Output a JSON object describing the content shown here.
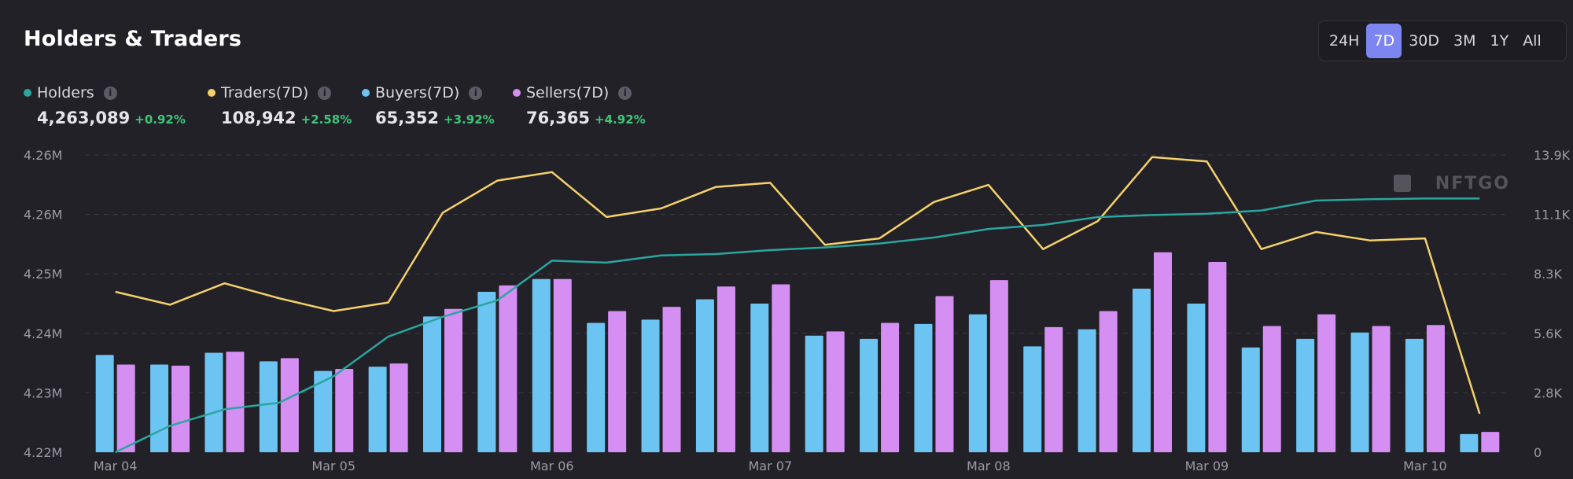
{
  "title": "Holders & Traders",
  "ranges": [
    {
      "label": "24H",
      "active": false
    },
    {
      "label": "7D",
      "active": true
    },
    {
      "label": "30D",
      "active": false
    },
    {
      "label": "3M",
      "active": false
    },
    {
      "label": "1Y",
      "active": false
    },
    {
      "label": "All",
      "active": false
    }
  ],
  "legend": [
    {
      "label": "Holders",
      "value": "4,263,089",
      "change": "+0.92%",
      "color": "#2ba5a0"
    },
    {
      "label": "Traders(7D)",
      "value": "108,942",
      "change": "+2.58%",
      "color": "#f4d16b"
    },
    {
      "label": "Buyers(7D)",
      "value": "65,352",
      "change": "+3.92%",
      "color": "#6cc4f2"
    },
    {
      "label": "Sellers(7D)",
      "value": "76,365",
      "change": "+4.92%",
      "color": "#d58ef2"
    }
  ],
  "watermark": "NFTGO",
  "chart_data": {
    "type": "bar",
    "x_ticks": [
      "Mar 04",
      "Mar 05",
      "Mar 06",
      "Mar 07",
      "Mar 08",
      "Mar 09",
      "Mar 10"
    ],
    "left_axis": {
      "ticks": [
        "4.22M",
        "4.23M",
        "4.24M",
        "4.25M",
        "4.26M",
        "4.26M"
      ],
      "range": [
        4220000,
        4265000
      ]
    },
    "right_axis": {
      "ticks": [
        "0",
        "2.8K",
        "5.6K",
        "8.3K",
        "11.1K",
        "13.9K"
      ],
      "range": [
        0,
        13900
      ]
    },
    "grid": true,
    "series": [
      {
        "name": "Holders",
        "type": "line",
        "axis": "left",
        "color": "#2ba5a0",
        "values": [
          4220000,
          4224000,
          4226500,
          4227500,
          4231500,
          4237500,
          4240500,
          4243000,
          4249000,
          4248700,
          4249800,
          4250000,
          4250600,
          4251000,
          4251600,
          4252500,
          4253800,
          4254400,
          4255600,
          4255900,
          4256100,
          4256600,
          4258100,
          4258300,
          4258400,
          4258400
        ]
      },
      {
        "name": "Traders(7D)",
        "type": "line",
        "axis": "right",
        "color": "#f4d16b",
        "values": [
          7500,
          6900,
          7900,
          7200,
          6600,
          7000,
          11200,
          12700,
          13100,
          11000,
          11400,
          12400,
          12600,
          9700,
          10000,
          11700,
          12500,
          9500,
          10800,
          13800,
          13600,
          9500,
          10300,
          9900,
          10000,
          1800
        ]
      },
      {
        "name": "Buyers(7D)",
        "type": "bar",
        "axis": "right",
        "color": "#6cc4f2",
        "values": [
          4550,
          4100,
          4650,
          4250,
          3800,
          4000,
          6350,
          7500,
          8100,
          6050,
          6200,
          7150,
          6950,
          5450,
          5300,
          6000,
          6450,
          4950,
          5750,
          7650,
          6950,
          4900,
          5300,
          5600,
          5300,
          850
        ]
      },
      {
        "name": "Sellers(7D)",
        "type": "bar",
        "axis": "right",
        "color": "#d58ef2",
        "values": [
          4100,
          4050,
          4700,
          4400,
          3900,
          4150,
          6700,
          7800,
          8100,
          6600,
          6800,
          7750,
          7850,
          5650,
          6050,
          7300,
          8050,
          5850,
          6600,
          9350,
          8900,
          5900,
          6450,
          5900,
          5950,
          950
        ]
      }
    ]
  }
}
